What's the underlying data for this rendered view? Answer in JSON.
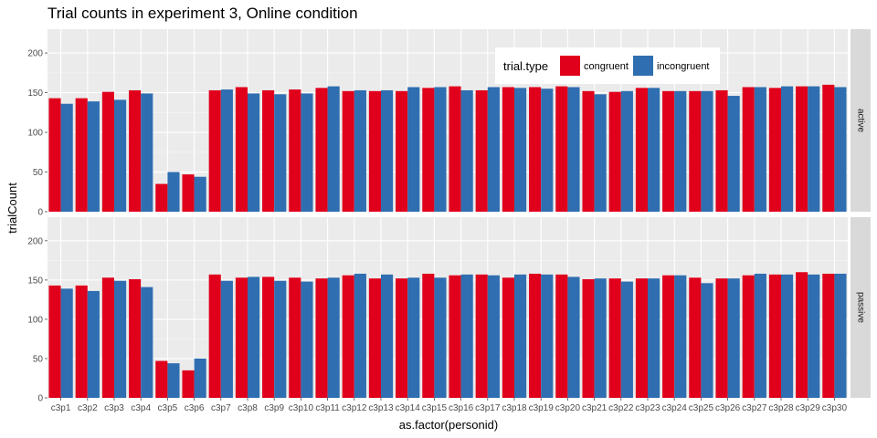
{
  "chart_data": {
    "type": "bar",
    "title": "Trial counts in experiment 3, Online condition",
    "xlabel": "as.factor(personid)",
    "ylabel": "trialCount",
    "ylim": [
      0,
      230
    ],
    "yticks": [
      0,
      50,
      100,
      150,
      200
    ],
    "grid": true,
    "categories": [
      "c3p1",
      "c3p2",
      "c3p3",
      "c3p4",
      "c3p5",
      "c3p6",
      "c3p7",
      "c3p8",
      "c3p9",
      "c3p10",
      "c3p11",
      "c3p12",
      "c3p13",
      "c3p14",
      "c3p15",
      "c3p16",
      "c3p17",
      "c3p18",
      "c3p19",
      "c3p20",
      "c3p21",
      "c3p22",
      "c3p23",
      "c3p24",
      "c3p25",
      "c3p26",
      "c3p27",
      "c3p28",
      "c3p29",
      "c3p30"
    ],
    "legend": {
      "title": "trial.type",
      "placement": "top-right",
      "entries": [
        {
          "label": "congruent",
          "color": "#e0001b"
        },
        {
          "label": "incongruent",
          "color": "#2f6eb0"
        }
      ]
    },
    "facets": [
      {
        "label": "active",
        "series": [
          {
            "name": "congruent",
            "values": [
              143,
              143,
              151,
              153,
              35,
              47,
              153,
              157,
              153,
              154,
              156,
              152,
              152,
              152,
              156,
              158,
              153,
              157,
              157,
              158,
              152,
              151,
              156,
              152,
              152,
              153,
              157,
              156,
              158,
              160
            ]
          },
          {
            "name": "incongruent",
            "values": [
              136,
              139,
              141,
              149,
              50,
              44,
              154,
              149,
              148,
              149,
              158,
              153,
              153,
              157,
              157,
              153,
              157,
              156,
              155,
              157,
              148,
              152,
              156,
              152,
              152,
              146,
              157,
              158,
              158,
              157
            ]
          }
        ]
      },
      {
        "label": "passive",
        "series": [
          {
            "name": "congruent",
            "values": [
              143,
              143,
              153,
              151,
              47,
              35,
              157,
              153,
              154,
              153,
              152,
              156,
              152,
              152,
              158,
              156,
              157,
              153,
              158,
              157,
              151,
              152,
              152,
              156,
              153,
              152,
              156,
              157,
              160,
              158
            ]
          },
          {
            "name": "incongruent",
            "values": [
              139,
              136,
              149,
              141,
              44,
              50,
              149,
              154,
              149,
              148,
              153,
              158,
              157,
              153,
              153,
              157,
              156,
              157,
              157,
              154,
              152,
              148,
              152,
              156,
              146,
              152,
              158,
              157,
              157,
              158
            ]
          }
        ]
      }
    ]
  }
}
